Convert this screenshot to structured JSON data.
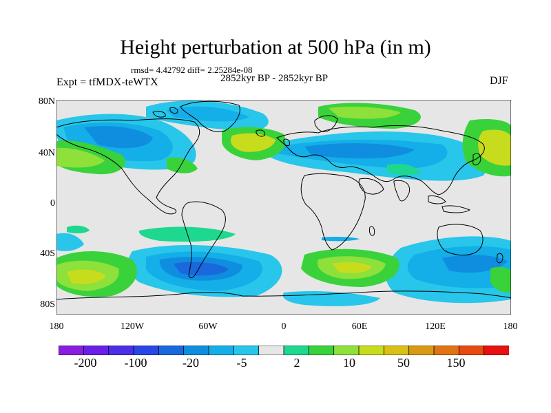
{
  "header": {
    "title": "Height perturbation at 500 hPa (in m)",
    "stats": "rmsd= 4.42792 diff= 2.25284e-08",
    "period": "2852kyr BP - 2852kyr BP",
    "experiment": "Expt = tfMDX-teWTX",
    "season": "DJF"
  },
  "map": {
    "lat_ticks": [
      "80N",
      "40N",
      "0",
      "40S",
      "80S"
    ],
    "lon_ticks": [
      "180",
      "120W",
      "60W",
      "0",
      "60E",
      "120E",
      "180"
    ],
    "background_color": "#e6e6e6"
  },
  "colorbar": {
    "labels": [
      "-200",
      "-100",
      "-20",
      "-5",
      "2",
      "10",
      "50",
      "150"
    ],
    "colors": [
      "#8a1ee0",
      "#6a1ee8",
      "#4a2ee8",
      "#2a46e6",
      "#1a68de",
      "#0f8ee0",
      "#14aee8",
      "#28c6ea",
      "#e6e6e6",
      "#1ed890",
      "#3ad23a",
      "#8ee03a",
      "#c8dc1e",
      "#d8c014",
      "#d89a14",
      "#e07414",
      "#e84a10",
      "#e81010"
    ]
  }
}
